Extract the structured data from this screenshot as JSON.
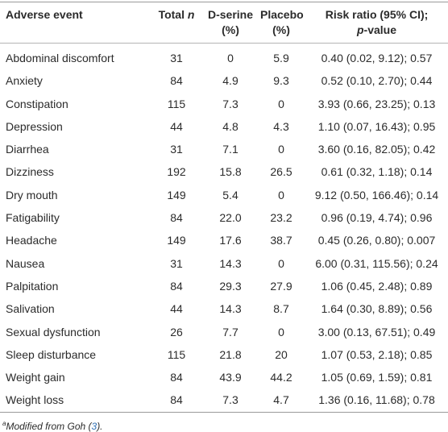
{
  "table": {
    "header": {
      "event": "Adverse event",
      "total": [
        "Total",
        "n"
      ],
      "dserine": [
        "D-serine",
        "(%)"
      ],
      "placebo": [
        "Placebo",
        "(%)"
      ],
      "risk": [
        "Risk ratio (95% CI);",
        "p",
        "-value"
      ]
    },
    "rows": [
      [
        "Abdominal discomfort",
        "31",
        "0",
        "5.9",
        "0.40 (0.02, 9.12); 0.57"
      ],
      [
        "Anxiety",
        "84",
        "4.9",
        "9.3",
        "0.52 (0.10, 2.70); 0.44"
      ],
      [
        "Constipation",
        "115",
        "7.3",
        "0",
        "3.93 (0.66, 23.25); 0.13"
      ],
      [
        "Depression",
        "44",
        "4.8",
        "4.3",
        "1.10 (0.07, 16.43); 0.95"
      ],
      [
        "Diarrhea",
        "31",
        "7.1",
        "0",
        "3.60 (0.16, 82.05); 0.42"
      ],
      [
        "Dizziness",
        "192",
        "15.8",
        "26.5",
        "0.61 (0.32, 1.18); 0.14"
      ],
      [
        "Dry mouth",
        "149",
        "5.4",
        "0",
        "9.12 (0.50, 166.46); 0.14"
      ],
      [
        "Fatigability",
        "84",
        "22.0",
        "23.2",
        "0.96 (0.19, 4.74); 0.96"
      ],
      [
        "Headache",
        "149",
        "17.6",
        "38.7",
        "0.45 (0.26, 0.80); 0.007"
      ],
      [
        "Nausea",
        "31",
        "14.3",
        "0",
        "6.00 (0.31, 115.56); 0.24"
      ],
      [
        "Palpitation",
        "84",
        "29.3",
        "27.9",
        "1.06 (0.45, 2.48); 0.89"
      ],
      [
        "Salivation",
        "44",
        "14.3",
        "8.7",
        "1.64 (0.30, 8.89); 0.56"
      ],
      [
        "Sexual dysfunction",
        "26",
        "7.7",
        "0",
        "3.00 (0.13, 67.51); 0.49"
      ],
      [
        "Sleep disturbance",
        "115",
        "21.8",
        "20",
        "1.07 (0.53, 2.18); 0.85"
      ],
      [
        "Weight gain",
        "84",
        "43.9",
        "44.2",
        "1.05 (0.69, 1.59); 0.81"
      ],
      [
        "Weight loss",
        "84",
        "7.3",
        "4.7",
        "1.36 (0.16, 11.68); 0.78"
      ]
    ]
  },
  "footnote": {
    "marker": "a",
    "text": "Modified from Goh (",
    "ref": "3",
    "end": ")."
  }
}
